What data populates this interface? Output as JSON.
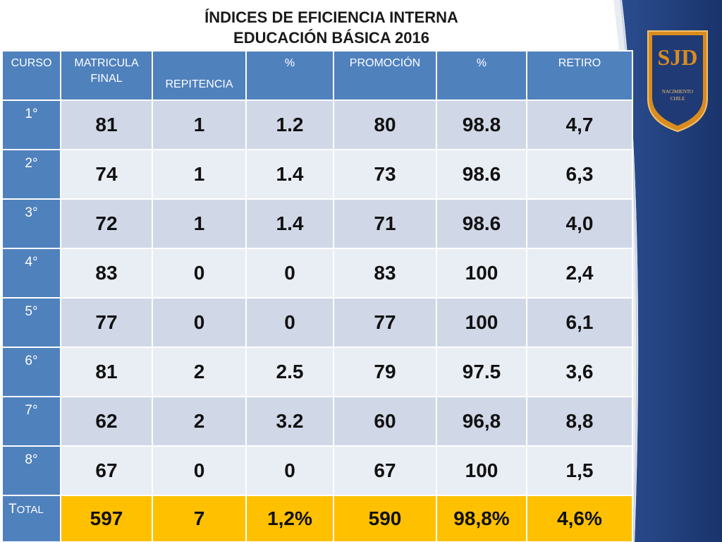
{
  "title": {
    "line1": "ÍNDICES DE EFICIENCIA INTERNA",
    "line2": "EDUCACIÓN  BÁSICA  2016"
  },
  "logo": {
    "initials": "SJD",
    "subtitle_line1": "NACIMIENTO",
    "subtitle_line2": "CHILE"
  },
  "colors": {
    "header_blue": "#4f81bd",
    "row_dark": "#d0d8e8",
    "row_light": "#e9edf4",
    "total_yellow": "#ffc000",
    "panel_navy": "#1f3a75",
    "logo_gold": "#d98c1f"
  },
  "table": {
    "headers": {
      "curso": "CURSO",
      "matricula_line1": "MATRICULA",
      "matricula_line2": "FINAL",
      "repitencia": "REPITENCIA",
      "pct1": "%",
      "promocion": "PROMOCIÓN",
      "pct2": "%",
      "retiro": "RETIRO"
    },
    "rows": [
      [
        "1°",
        "81",
        "1",
        "1.2",
        "80",
        "98.8",
        "4,7"
      ],
      [
        "2°",
        "74",
        "1",
        "1.4",
        "73",
        "98.6",
        "6,3"
      ],
      [
        "3°",
        "72",
        "1",
        "1.4",
        "71",
        "98.6",
        "4,0"
      ],
      [
        "4°",
        "83",
        "0",
        "0",
        "83",
        "100",
        "2,4"
      ],
      [
        "5°",
        "77",
        "0",
        "0",
        "77",
        "100",
        "6,1"
      ],
      [
        "6°",
        "81",
        "2",
        "2.5",
        "79",
        "97.5",
        "3,6"
      ],
      [
        "7°",
        "62",
        "2",
        "3.2",
        "60",
        "96,8",
        "8,8"
      ],
      [
        "8°",
        "67",
        "0",
        "0",
        "67",
        "100",
        "1,5"
      ]
    ],
    "total": {
      "label_first": "T",
      "label_rest": "OTAL",
      "values": [
        "597",
        "7",
        "1,2%",
        "590",
        "98,8%",
        "4,6%"
      ]
    }
  }
}
